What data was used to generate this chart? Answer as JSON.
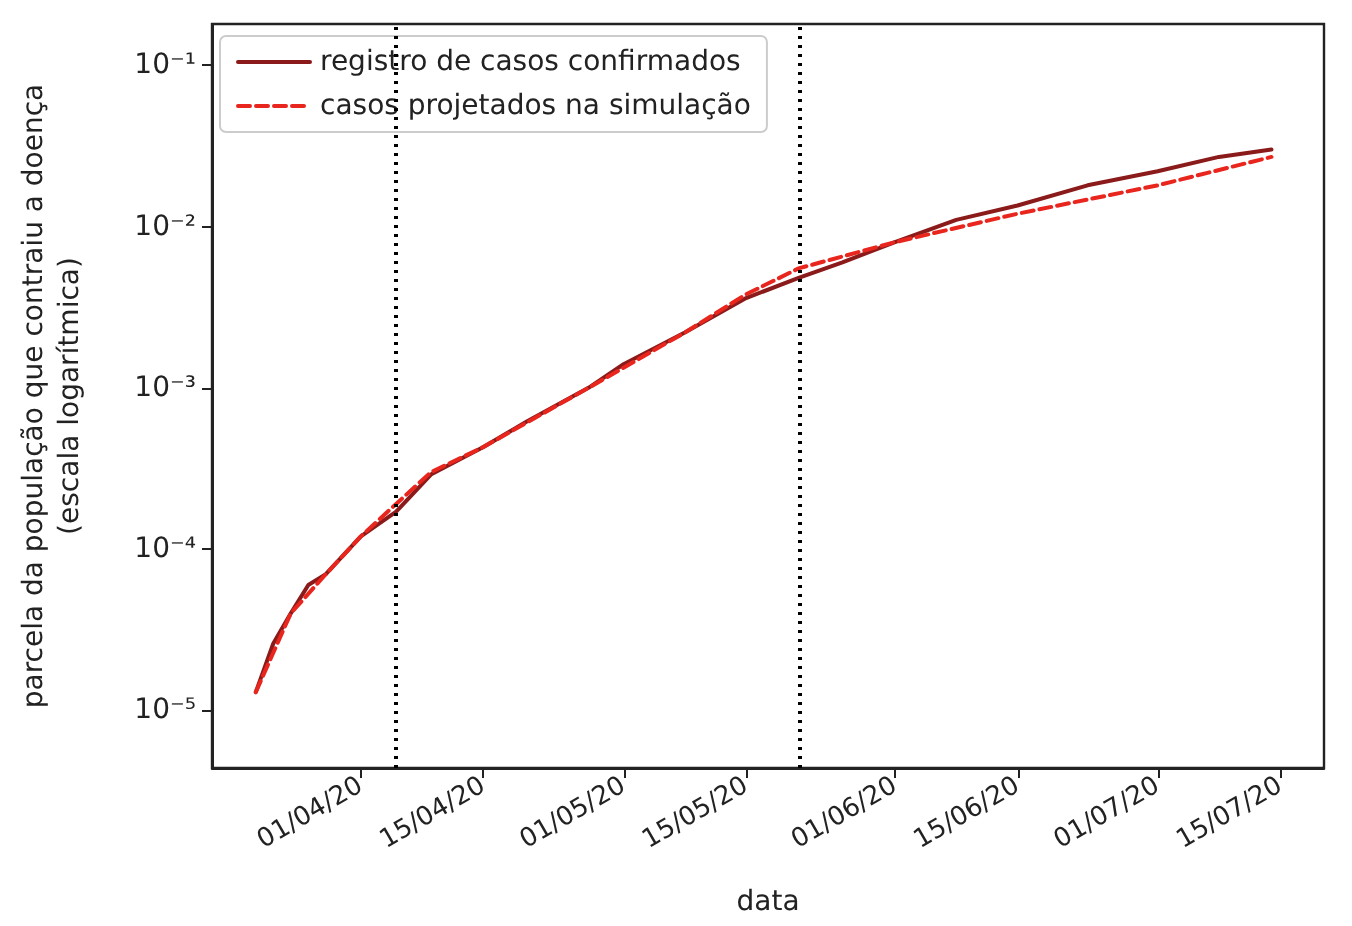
{
  "chart_data": {
    "type": "line",
    "xlabel": "data",
    "ylabel": "parcela da população que contraiu a doença\n(escala logarítmica)",
    "log": "y",
    "xlim": [
      "--03-15",
      "--07-20"
    ],
    "xticks": [
      {
        "value": "--04-01",
        "label": "01/04/20"
      },
      {
        "value": "--04-15",
        "label": "15/04/20"
      },
      {
        "value": "--05-01",
        "label": "01/05/20"
      },
      {
        "value": "--05-15",
        "label": "15/05/20"
      },
      {
        "value": "--06-01",
        "label": "01/06/20"
      },
      {
        "value": "--06-15",
        "label": "15/06/20"
      },
      {
        "value": "--07-01",
        "label": "01/07/20"
      },
      {
        "value": "--07-15",
        "label": "15/07/20"
      }
    ],
    "ylim": [
      4.4e-06,
      0.18
    ],
    "yticks": [
      {
        "value": 1e-05,
        "label": "10⁻⁵"
      },
      {
        "value": 0.0001,
        "label": "10⁻⁴"
      },
      {
        "value": 0.001,
        "label": "10⁻³"
      },
      {
        "value": 0.01,
        "label": "10⁻²"
      },
      {
        "value": 0.1,
        "label": "10⁻¹"
      }
    ],
    "grid": false,
    "legend": "top left",
    "series": [
      {
        "name": "registro de casos confirmados",
        "color": "#8b1a1a",
        "line_style": "solid",
        "x": [
          "--03-20",
          "--03-22",
          "--03-24",
          "--03-26",
          "--03-28",
          "--04-01",
          "--04-05",
          "--04-09",
          "--04-15",
          "--04-20",
          "--04-27",
          "--05-01",
          "--05-08",
          "--05-15",
          "--05-21",
          "--05-26",
          "--06-01",
          "--06-08",
          "--06-15",
          "--06-23",
          "--07-01",
          "--07-08",
          "--07-14"
        ],
        "values": [
          1.3e-05,
          2.6e-05,
          4e-05,
          6e-05,
          7e-05,
          0.00012,
          0.00017,
          0.00029,
          0.00043,
          0.00062,
          0.001,
          0.0014,
          0.0022,
          0.0036,
          0.0048,
          0.006,
          0.008,
          0.011,
          0.0135,
          0.018,
          0.022,
          0.027,
          0.03
        ]
      },
      {
        "name": "casos projetados na simulação",
        "color": "#e8261e",
        "line_style": "dashed",
        "x": [
          "--03-20",
          "--03-24",
          "--03-28",
          "--04-01",
          "--04-05",
          "--04-09",
          "--04-15",
          "--04-27",
          "--05-08",
          "--05-15",
          "--05-21",
          "--06-01",
          "--06-15",
          "--07-01",
          "--07-14"
        ],
        "values": [
          1.3e-05,
          4e-05,
          7e-05,
          0.00012,
          0.00019,
          0.0003,
          0.00043,
          0.001,
          0.0022,
          0.0038,
          0.0055,
          0.008,
          0.012,
          0.018,
          0.027
        ]
      }
    ],
    "ref_lines": [
      {
        "axis": "x",
        "value": "--04-05",
        "color": "#000000",
        "line_style": "dotted"
      },
      {
        "axis": "x",
        "value": "--05-21",
        "color": "#000000",
        "line_style": "dotted"
      }
    ]
  }
}
